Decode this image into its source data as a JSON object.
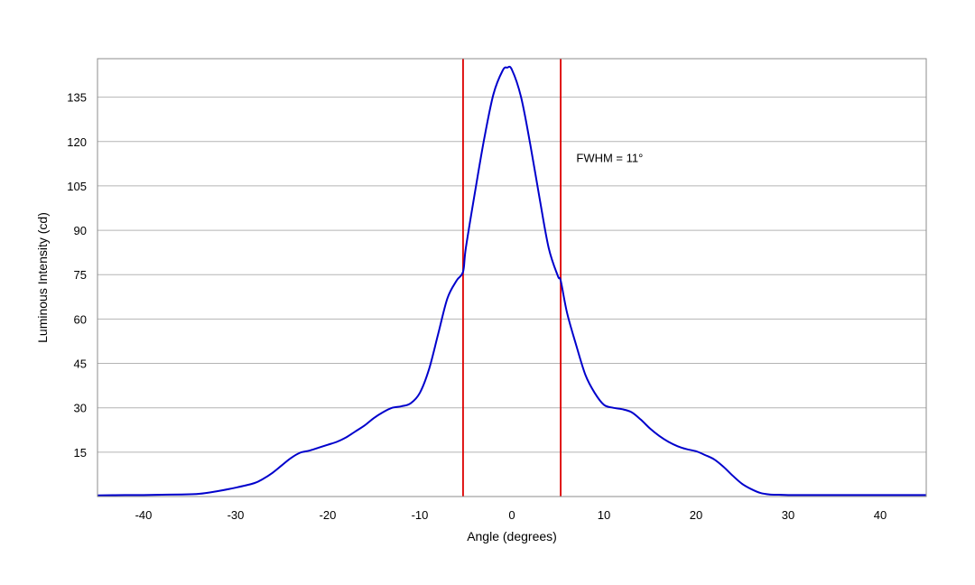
{
  "chart_data": {
    "type": "line",
    "title": "",
    "xlabel": "Angle (degrees)",
    "ylabel": "Luminous Intensity (cd)",
    "xlim": [
      -45,
      45
    ],
    "ylim": [
      0,
      148
    ],
    "x_ticks": [
      -40,
      -30,
      -20,
      -10,
      0,
      10,
      20,
      30,
      40
    ],
    "y_ticks": [
      15,
      30,
      45,
      60,
      75,
      90,
      105,
      120,
      135
    ],
    "grid": "horizontal",
    "legend": "none",
    "colors": {
      "series": "#0000cc",
      "markers": "#dd0000",
      "grid": "#b4b4b4",
      "frame": "#8c8c8c"
    },
    "series": [
      {
        "x": [
          -45,
          -42,
          -40,
          -38,
          -36,
          -34,
          -32,
          -30,
          -28,
          -27,
          -26,
          -25,
          -24,
          -23,
          -22,
          -21,
          -20,
          -19,
          -18,
          -17,
          -16,
          -15,
          -14,
          -13,
          -12,
          -11,
          -10,
          -9,
          -8,
          -7,
          -6,
          -5.3,
          -5,
          -4,
          -3,
          -2,
          -1,
          -0.5,
          0,
          1,
          2,
          3,
          4,
          5,
          5.3,
          6,
          7,
          8,
          9,
          10,
          11,
          12,
          13,
          14,
          15,
          16,
          17,
          18,
          19,
          20,
          21,
          22,
          23,
          24,
          25,
          26,
          27,
          28,
          29,
          30,
          32,
          34,
          36,
          38,
          40,
          42,
          45
        ],
        "y": [
          0.4,
          0.5,
          0.5,
          0.6,
          0.7,
          0.9,
          1.8,
          3,
          4.5,
          6,
          8,
          10.5,
          13,
          14.8,
          15.5,
          16.5,
          17.5,
          18.5,
          20,
          22,
          24,
          26.5,
          28.5,
          30,
          30.5,
          31.5,
          35,
          43,
          55,
          67,
          73,
          76,
          84,
          103,
          121,
          136,
          144,
          145,
          144.3,
          135,
          119,
          101,
          84,
          74.5,
          73,
          62,
          51,
          41,
          35,
          31,
          30,
          29.5,
          28.5,
          26,
          23,
          20.5,
          18.5,
          17,
          16,
          15.3,
          14,
          12.5,
          10,
          7,
          4.3,
          2.5,
          1.2,
          0.7,
          0.6,
          0.5,
          0.5,
          0.5,
          0.5,
          0.5,
          0.5,
          0.5,
          0.5
        ]
      }
    ],
    "vertical_lines": [
      -5.3,
      5.3
    ],
    "annotations": [
      {
        "text": "FWHM = 11°",
        "x": 7,
        "y": 113
      }
    ]
  }
}
